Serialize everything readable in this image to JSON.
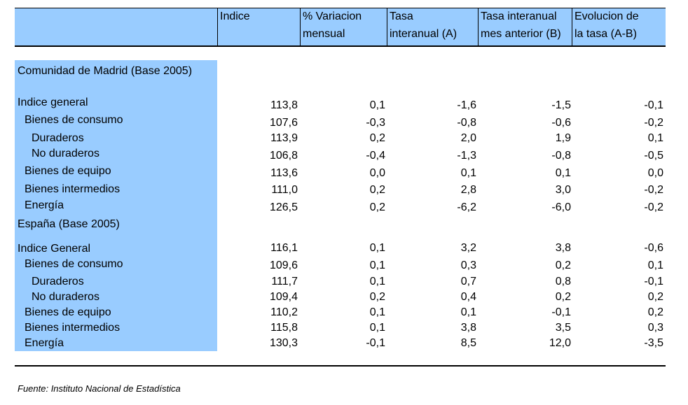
{
  "header": {
    "col_indice": "Indice",
    "col_var_1": "% Variacion",
    "col_var_2": "mensual",
    "col_tasa_1": "Tasa",
    "col_tasa_2": "interanual (A)",
    "col_tasa_ant_1": "Tasa interanual",
    "col_tasa_ant_2": "mes anterior (B)",
    "col_evol_1": "Evolucion de",
    "col_evol_2": "la tasa (A-B)"
  },
  "madrid": {
    "section_title": "Comunidad de Madrid (Base 2005)",
    "rows": [
      {
        "label": "Indice general",
        "values": [
          "113,8",
          "0,1",
          "-1,6",
          "-1,5",
          "-0,1"
        ]
      },
      {
        "label": "Bienes de consumo",
        "values": [
          "107,6",
          "-0,3",
          "-0,8",
          "-0,6",
          "-0,2"
        ]
      },
      {
        "label": "Duraderos",
        "values": [
          "113,9",
          "0,2",
          "2,0",
          "1,9",
          "0,1"
        ]
      },
      {
        "label": "No duraderos",
        "values": [
          "106,8",
          "-0,4",
          "-1,3",
          "-0,8",
          "-0,5"
        ]
      },
      {
        "label": "Bienes de equipo",
        "values": [
          "113,6",
          "0,0",
          "0,1",
          "0,1",
          "0,0"
        ]
      },
      {
        "label": "Bienes intermedios",
        "values": [
          "111,0",
          "0,2",
          "2,8",
          "3,0",
          "-0,2"
        ]
      },
      {
        "label": "Energía",
        "values": [
          "126,5",
          "0,2",
          "-6,2",
          "-6,0",
          "-0,2"
        ]
      }
    ]
  },
  "spain": {
    "section_title": "España (Base 2005)",
    "rows": [
      {
        "label": "Indice General",
        "values": [
          "116,1",
          "0,1",
          "3,2",
          "3,8",
          "-0,6"
        ]
      },
      {
        "label": "Bienes de consumo",
        "values": [
          "109,6",
          "0,1",
          "0,3",
          "0,2",
          "0,1"
        ]
      },
      {
        "label": "Duraderos",
        "values": [
          "111,7",
          "0,1",
          "0,7",
          "0,8",
          "-0,1"
        ]
      },
      {
        "label": "No duraderos",
        "values": [
          "109,4",
          "0,2",
          "0,4",
          "0,2",
          "0,2"
        ]
      },
      {
        "label": "Bienes de equipo",
        "values": [
          "110,2",
          "0,1",
          "0,1",
          "-0,1",
          "0,2"
        ]
      },
      {
        "label": "Bienes intermedios",
        "values": [
          "115,8",
          "0,1",
          "3,8",
          "3,5",
          "0,3"
        ]
      },
      {
        "label": "Energía",
        "values": [
          "130,3",
          "-0,1",
          "8,5",
          "12,0",
          "-3,5"
        ]
      }
    ]
  },
  "footer": {
    "source": "Fuente: Instituto Nacional de Estadística"
  },
  "colors": {
    "header_bg": "#99ccff",
    "label_bg": "#99ccff"
  }
}
